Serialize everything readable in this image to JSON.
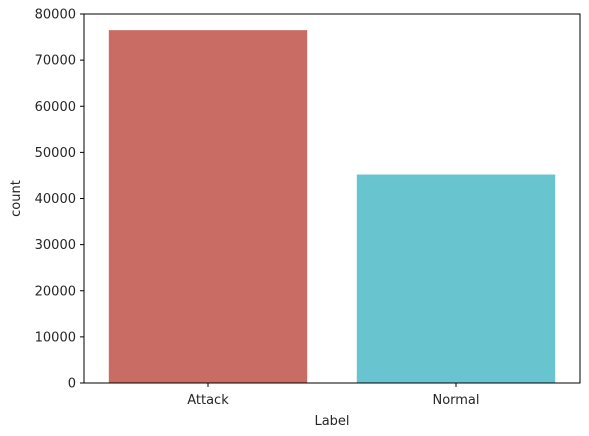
{
  "chart_data": {
    "type": "bar",
    "categories": [
      "Attack",
      "Normal"
    ],
    "values": [
      76500,
      45200
    ],
    "colors": [
      "#c96c64",
      "#68c5cf"
    ],
    "xlabel": "Label",
    "ylabel": "count",
    "ylim": [
      0,
      80000
    ],
    "yticks": [
      0,
      10000,
      20000,
      30000,
      40000,
      50000,
      60000,
      70000,
      80000
    ],
    "grid": false,
    "legend": "none"
  }
}
